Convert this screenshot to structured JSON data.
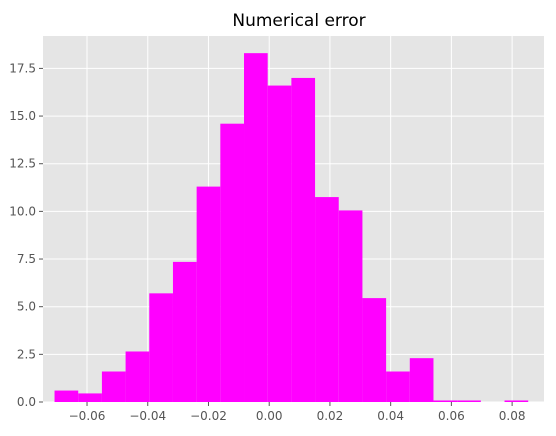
{
  "chart_data": {
    "type": "bar",
    "title": "Numerical error",
    "xlabel": "",
    "ylabel": "",
    "style": "ggplot",
    "grid": true,
    "bar_color": "#ff00ff",
    "background_color": "#e5e5e5",
    "grid_color": "#ffffff",
    "xlim": [
      -0.0745,
      0.0905
    ],
    "ylim": [
      0,
      19.2
    ],
    "x_ticks": [
      -0.06,
      -0.04,
      -0.02,
      0.0,
      0.02,
      0.04,
      0.06,
      0.08
    ],
    "x_tick_labels": [
      "−0.06",
      "−0.04",
      "−0.02",
      "0.00",
      "0.02",
      "0.04",
      "0.06",
      "0.08"
    ],
    "y_ticks": [
      0.0,
      2.5,
      5.0,
      7.5,
      10.0,
      12.5,
      15.0,
      17.5
    ],
    "y_tick_labels": [
      "0.0",
      "2.5",
      "5.0",
      "7.5",
      "10.0",
      "12.5",
      "15.0",
      "17.5"
    ],
    "bin_edges": [
      -0.0707,
      -0.0629,
      -0.0551,
      -0.0473,
      -0.0395,
      -0.0317,
      -0.0239,
      -0.0161,
      -0.0083,
      -0.0005,
      0.0073,
      0.0151,
      0.0229,
      0.0307,
      0.0385,
      0.0463,
      0.0541,
      0.0619,
      0.0697,
      0.0775,
      0.0853
    ],
    "values": [
      0.6,
      0.45,
      1.6,
      2.65,
      5.7,
      7.35,
      11.3,
      14.6,
      18.3,
      16.6,
      17.0,
      10.75,
      10.05,
      5.45,
      1.6,
      2.3,
      0.08,
      0.08,
      0.0,
      0.08
    ]
  }
}
